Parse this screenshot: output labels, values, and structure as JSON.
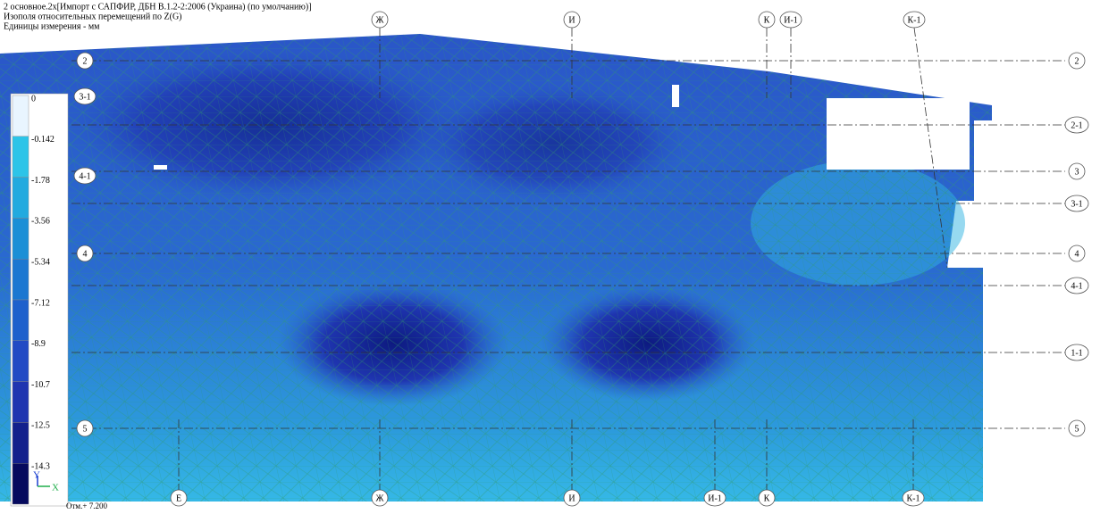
{
  "header": {
    "lines": [
      "2 основное.2x[Импорт с САПФИР, ДБН В.1.2-2:2006 (Украина) (по умолчанию)]",
      "Изополя относительных перемещений по Z(G)",
      "Единицы измерения - мм"
    ]
  },
  "legend": {
    "levels": [
      {
        "label": "0",
        "color": "#e9f5ff"
      },
      {
        "label": "-0.142",
        "color": "#2cc4e8"
      },
      {
        "label": "-1.78",
        "color": "#22aadf"
      },
      {
        "label": "-3.56",
        "color": "#1b8fd6"
      },
      {
        "label": "-5.34",
        "color": "#1b77d1"
      },
      {
        "label": "-7.12",
        "color": "#1e60cc"
      },
      {
        "label": "-8.9",
        "color": "#224ac4"
      },
      {
        "label": "-10.7",
        "color": "#1f35b0"
      },
      {
        "label": "-12.5",
        "color": "#13208c"
      },
      {
        "label": "-14.3",
        "color": "#060a5e"
      }
    ]
  },
  "axes": {
    "top": [
      "Ж",
      "И",
      "К",
      "И-1",
      "К-1"
    ],
    "bottom": [
      "Е",
      "Ж",
      "И",
      "И-1",
      "К",
      "К-1"
    ],
    "left": [
      "2",
      "3-1",
      "4-1",
      "4",
      "5"
    ],
    "right": [
      "2",
      "2-1",
      "3",
      "3-1",
      "4",
      "4-1",
      "1-1",
      "5"
    ]
  },
  "footer": {
    "y_label": "Y",
    "x_label": "X",
    "elevation": "Отм.+ 7.200"
  }
}
